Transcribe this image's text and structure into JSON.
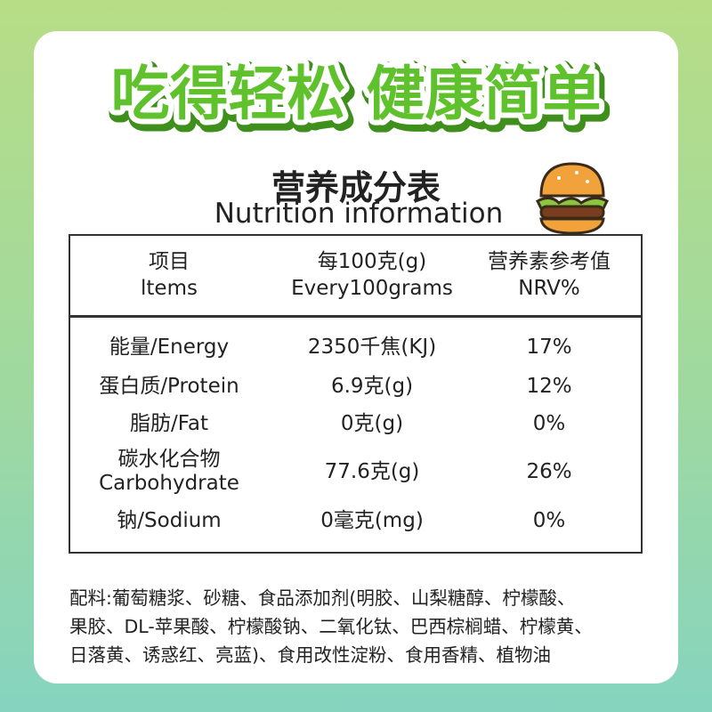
{
  "header": {
    "title": "吃得轻松 健康简单",
    "subtitle_cn": "营养成分表",
    "subtitle_en": "Nutrition information"
  },
  "table": {
    "columns": [
      [
        "项目",
        "ltems"
      ],
      [
        "每100克(g)",
        "Every100grams"
      ],
      [
        "营养素参考值",
        "NRV%"
      ]
    ],
    "rows": [
      [
        [
          "能量/Energy"
        ],
        "2350千焦(KJ)",
        "17%"
      ],
      [
        [
          "蛋白质/Protein"
        ],
        "6.9克(g)",
        "12%"
      ],
      [
        [
          "脂肪/Fat"
        ],
        "0克(g)",
        "0%"
      ],
      [
        [
          "碳水化合物",
          "Carbohydrate"
        ],
        "77.6克(g)",
        "26%"
      ],
      [
        [
          "钠/Sodium"
        ],
        "0毫克(mg)",
        "0%"
      ]
    ]
  },
  "ingredients": [
    "配料:葡萄糖浆、砂糖、食品添加剂(明胶、山梨糖醇、柠檬酸、",
    "果胶、DL-苹果酸、柠檬酸钠、二氧化钛、巴西棕榈蜡、柠檬黄、",
    "日落黄、诱惑红、亮蓝)、食用改性淀粉、食用香精、植物油"
  ]
}
